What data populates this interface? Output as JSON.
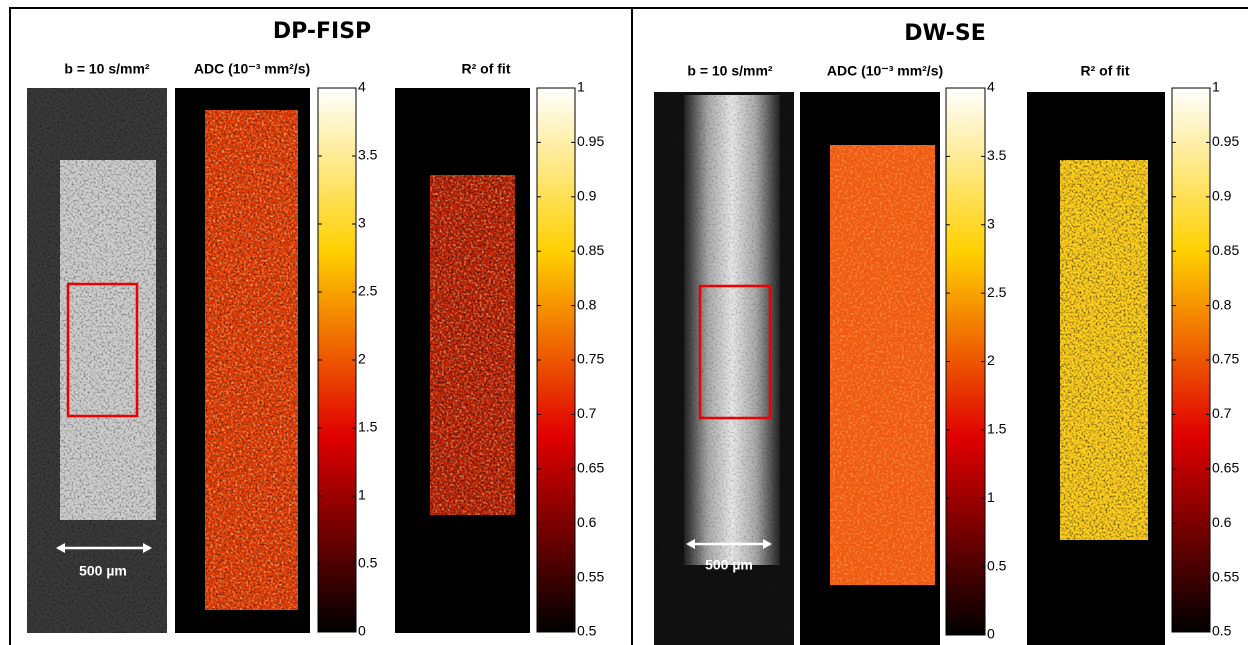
{
  "panels": [
    {
      "title": "DP-FISP",
      "labels": [
        "b = 10 s/mm²",
        "ADC (10⁻³ mm²/s)",
        "R² of fit"
      ],
      "scale_bar": "500 µm",
      "adc_colorbar": {
        "range": [
          0,
          4
        ],
        "ticks": [
          0,
          0.5,
          1,
          1.5,
          2,
          2.5,
          3,
          3.5,
          4
        ]
      },
      "r2_colorbar": {
        "range": [
          0.5,
          1
        ],
        "ticks": [
          0.5,
          0.55,
          0.6,
          0.65,
          0.7,
          0.75,
          0.8,
          0.85,
          0.9,
          0.95,
          1
        ]
      }
    },
    {
      "title": "DW-SE",
      "labels": [
        "b = 10 s/mm²",
        "ADC (10⁻³ mm²/s)",
        "R² of fit"
      ],
      "scale_bar": "500 µm",
      "adc_colorbar": {
        "range": [
          0,
          4
        ],
        "ticks": [
          0,
          0.5,
          1,
          1.5,
          2,
          2.5,
          3,
          3.5,
          4
        ]
      },
      "r2_colorbar": {
        "range": [
          0.5,
          1
        ],
        "ticks": [
          0.5,
          0.55,
          0.6,
          0.65,
          0.7,
          0.75,
          0.8,
          0.85,
          0.9,
          0.95,
          1
        ]
      }
    }
  ]
}
